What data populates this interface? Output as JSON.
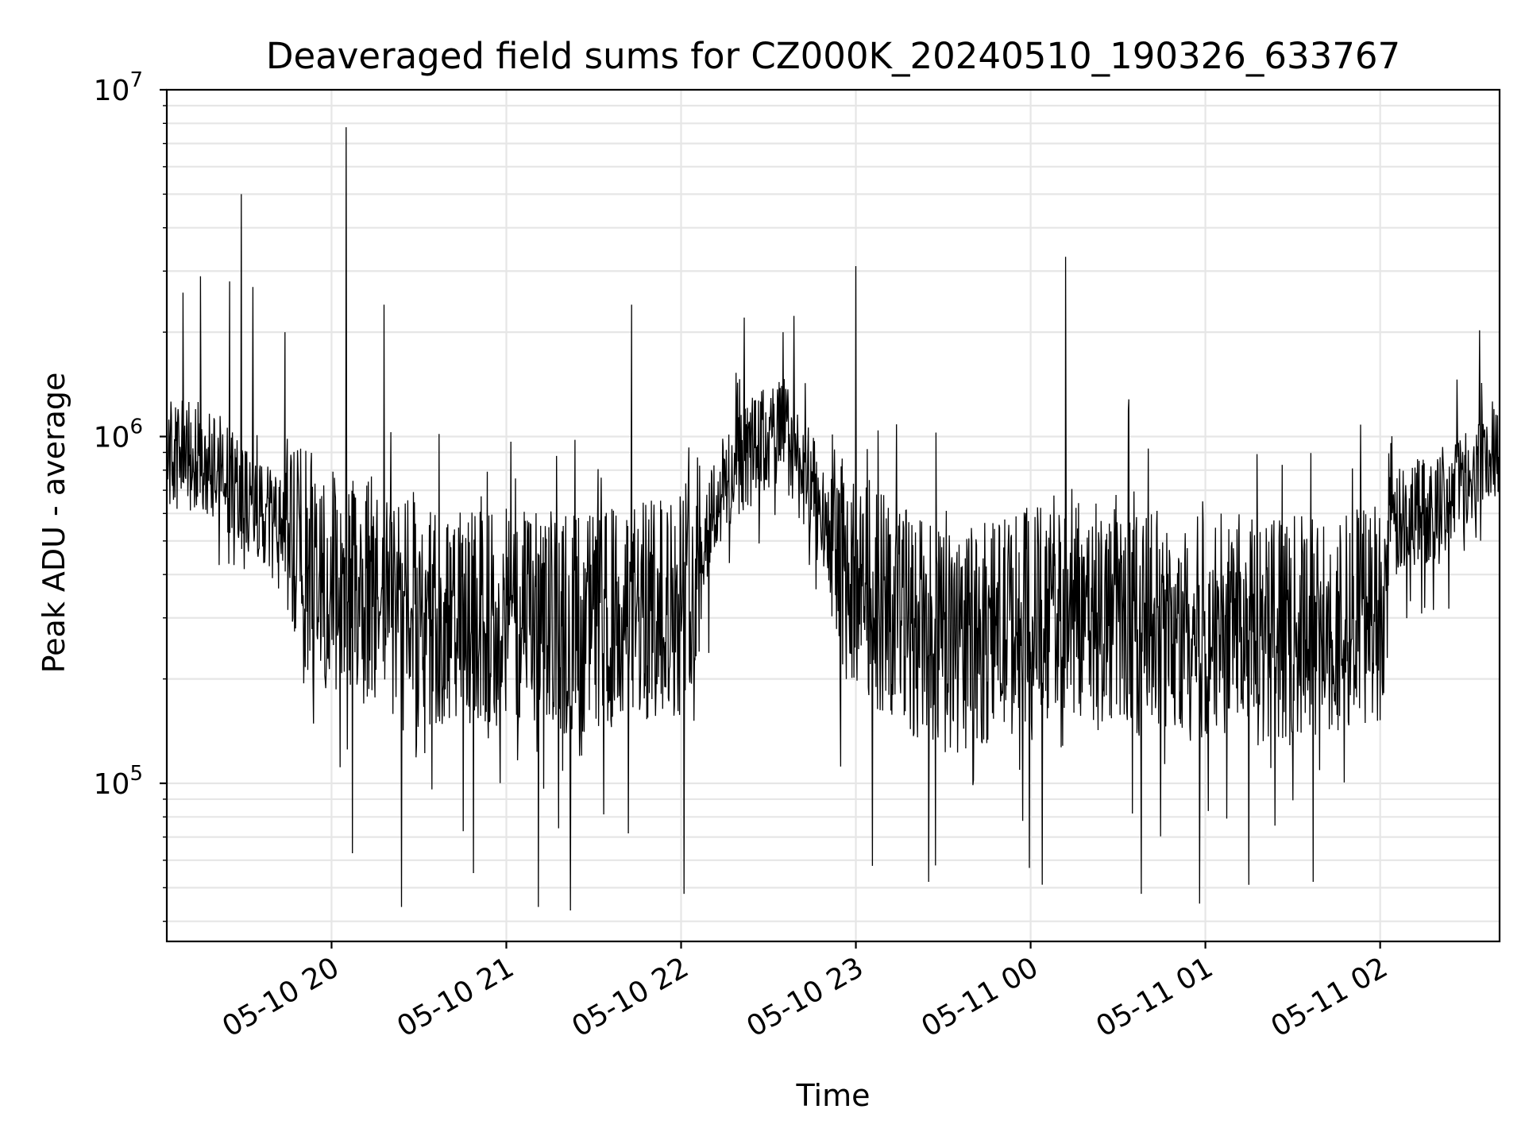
{
  "chart_data": {
    "type": "line",
    "title": "Deaveraged field sums for CZ000K_20240510_190326_633767",
    "xlabel": "Time",
    "ylabel": "Peak ADU - average",
    "yscale": "log",
    "ylim": [
      35000,
      10000000
    ],
    "xlim": [
      "2024-05-10 19:03:26",
      "2024-05-11 02:41:00"
    ],
    "grid": true,
    "x_ticks": [
      {
        "value": "2024-05-10 20:00",
        "label": "05-10 20"
      },
      {
        "value": "2024-05-10 21:00",
        "label": "05-10 21"
      },
      {
        "value": "2024-05-10 22:00",
        "label": "05-10 22"
      },
      {
        "value": "2024-05-10 23:00",
        "label": "05-10 23"
      },
      {
        "value": "2024-05-11 00:00",
        "label": "05-11 00"
      },
      {
        "value": "2024-05-11 01:00",
        "label": "05-11 01"
      },
      {
        "value": "2024-05-11 02:00",
        "label": "05-11 02"
      }
    ],
    "y_ticks": [
      {
        "value": 100000,
        "base": "10",
        "exp": "5"
      },
      {
        "value": 1000000,
        "base": "10",
        "exp": "6"
      },
      {
        "value": 10000000,
        "base": "10",
        "exp": "7"
      }
    ],
    "series": [
      {
        "color": "#000000",
        "baseline": [
          [
            "2024-05-10 19:03",
            900000
          ],
          [
            "2024-05-10 19:20",
            850000
          ],
          [
            "2024-05-10 19:35",
            600000
          ],
          [
            "2024-05-10 19:50",
            450000
          ],
          [
            "2024-05-10 20:00",
            380000
          ],
          [
            "2024-05-10 20:20",
            320000
          ],
          [
            "2024-05-10 20:40",
            290000
          ],
          [
            "2024-05-10 21:00",
            300000
          ],
          [
            "2024-05-10 21:20",
            290000
          ],
          [
            "2024-05-10 21:40",
            300000
          ],
          [
            "2024-05-10 22:00",
            330000
          ],
          [
            "2024-05-10 22:10",
            600000
          ],
          [
            "2024-05-10 22:20",
            850000
          ],
          [
            "2024-05-10 22:35",
            1050000
          ],
          [
            "2024-05-10 22:45",
            700000
          ],
          [
            "2024-05-10 22:55",
            420000
          ],
          [
            "2024-05-10 23:10",
            330000
          ],
          [
            "2024-05-10 23:30",
            250000
          ],
          [
            "2024-05-10 23:50",
            280000
          ],
          [
            "2024-05-11 00:10",
            330000
          ],
          [
            "2024-05-11 00:30",
            300000
          ],
          [
            "2024-05-11 00:50",
            270000
          ],
          [
            "2024-05-11 01:10",
            300000
          ],
          [
            "2024-05-11 01:30",
            280000
          ],
          [
            "2024-05-11 01:50",
            300000
          ],
          [
            "2024-05-11 02:00",
            320000
          ],
          [
            "2024-05-11 02:05",
            550000
          ],
          [
            "2024-05-11 02:20",
            650000
          ],
          [
            "2024-05-11 02:41",
            980000
          ]
        ],
        "spikes": [
          [
            "2024-05-10 19:09",
            2600000
          ],
          [
            "2024-05-10 19:15",
            2900000
          ],
          [
            "2024-05-10 19:25",
            2800000
          ],
          [
            "2024-05-10 19:29",
            5000000
          ],
          [
            "2024-05-10 19:33",
            2700000
          ],
          [
            "2024-05-10 19:44",
            2000000
          ],
          [
            "2024-05-10 20:05",
            7800000
          ],
          [
            "2024-05-10 20:18",
            2400000
          ],
          [
            "2024-05-10 21:43",
            2400000
          ],
          [
            "2024-05-10 22:35",
            2000000
          ],
          [
            "2024-05-10 23:00",
            3100000
          ],
          [
            "2024-05-11 00:12",
            3300000
          ]
        ],
        "dips": [
          [
            "2024-05-10 20:24",
            44000
          ],
          [
            "2024-05-10 21:11",
            44000
          ],
          [
            "2024-05-10 21:22",
            43000
          ],
          [
            "2024-05-10 22:01",
            48000
          ],
          [
            "2024-05-10 23:25",
            52000
          ],
          [
            "2024-05-11 00:04",
            51000
          ],
          [
            "2024-05-11 00:38",
            48000
          ],
          [
            "2024-05-11 00:58",
            45000
          ],
          [
            "2024-05-11 01:37",
            52000
          ]
        ]
      }
    ]
  }
}
